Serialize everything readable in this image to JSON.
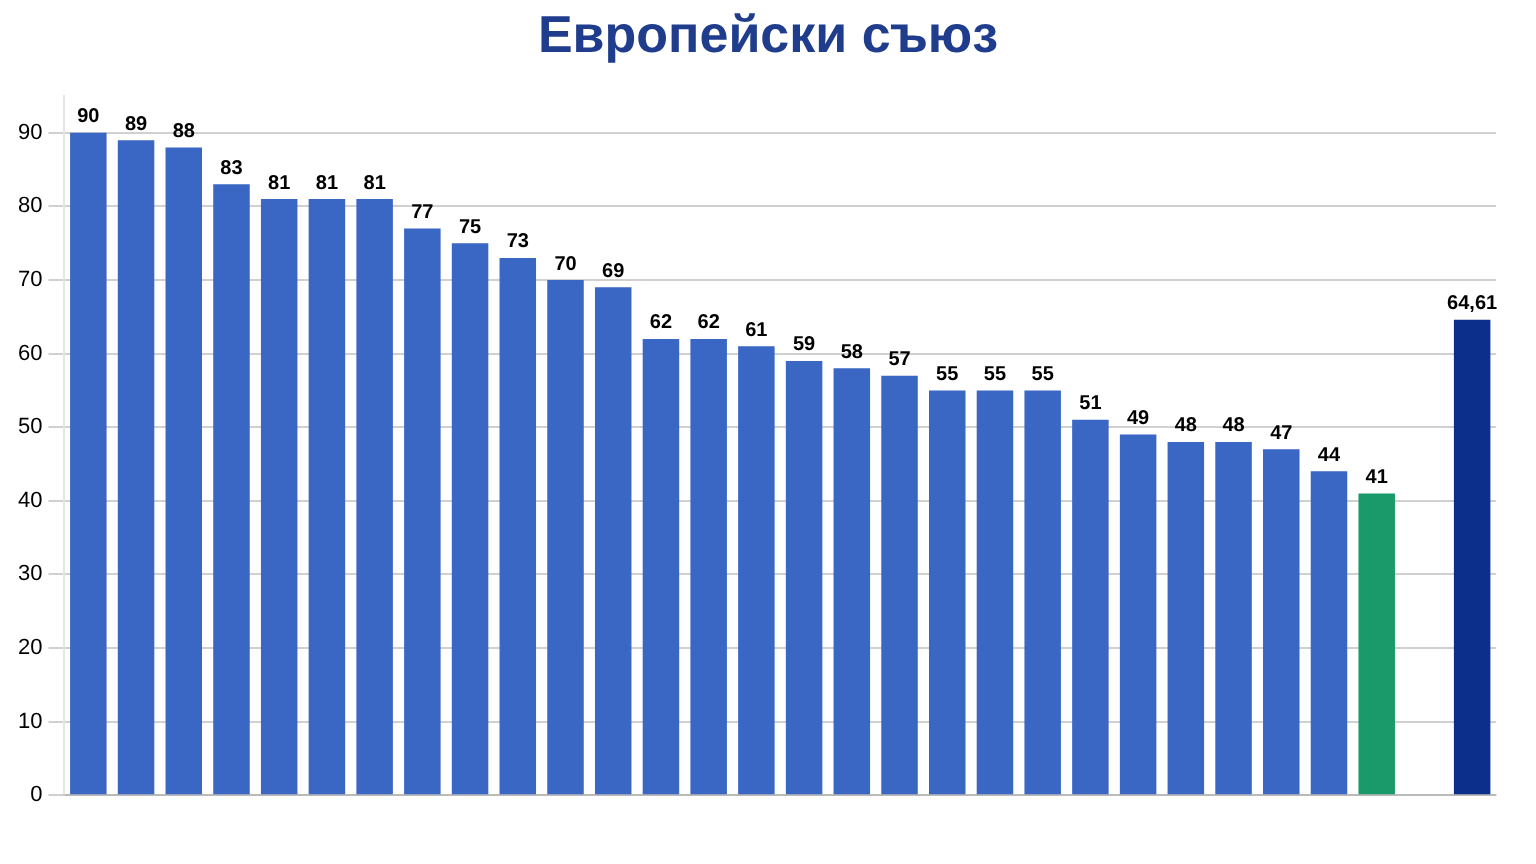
{
  "chart_data": {
    "type": "bar",
    "title": "Европейски съюз",
    "categories": [
      null,
      null,
      null,
      null,
      null,
      null,
      null,
      null,
      null,
      null,
      null,
      null,
      null,
      null,
      null,
      null,
      null,
      null,
      null,
      null,
      null,
      null,
      null,
      null,
      null,
      null,
      null,
      null,
      null,
      null
    ],
    "values": [
      90,
      89,
      88,
      83,
      81,
      81,
      81,
      77,
      75,
      73,
      70,
      69,
      62,
      62,
      61,
      59,
      58,
      57,
      55,
      55,
      55,
      51,
      49,
      48,
      48,
      47,
      44,
      41,
      null,
      64.61
    ],
    "value_labels": [
      "90",
      "89",
      "88",
      "83",
      "81",
      "81",
      "81",
      "77",
      "75",
      "73",
      "70",
      "69",
      "62",
      "62",
      "61",
      "59",
      "58",
      "57",
      "55",
      "55",
      "55",
      "51",
      "49",
      "48",
      "48",
      "47",
      "44",
      "41",
      null,
      "64,61"
    ],
    "colors": [
      "#3a66c4",
      "#3a66c4",
      "#3a66c4",
      "#3a66c4",
      "#3a66c4",
      "#3a66c4",
      "#3a66c4",
      "#3a66c4",
      "#3a66c4",
      "#3a66c4",
      "#3a66c4",
      "#3a66c4",
      "#3a66c4",
      "#3a66c4",
      "#3a66c4",
      "#3a66c4",
      "#3a66c4",
      "#3a66c4",
      "#3a66c4",
      "#3a66c4",
      "#3a66c4",
      "#3a66c4",
      "#3a66c4",
      "#3a66c4",
      "#3a66c4",
      "#3a66c4",
      "#3a66c4",
      "#1a9a6a",
      "#3a66c4",
      "#0d2f8c"
    ],
    "ylim": [
      0,
      95
    ],
    "yticks": [
      0,
      10,
      20,
      30,
      40,
      50,
      60,
      70,
      80,
      90
    ],
    "grid": "y",
    "legend": false
  }
}
